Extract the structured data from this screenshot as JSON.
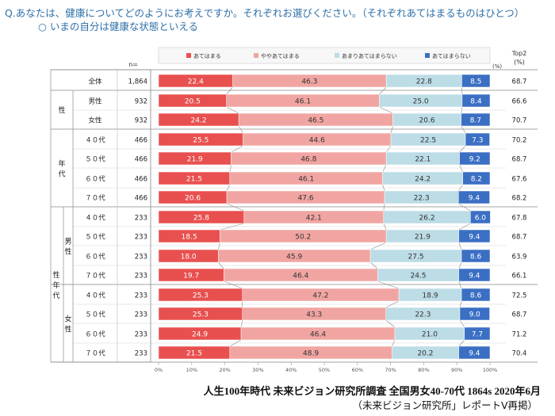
{
  "question": "Q.あなたは、健康についてどのようにお考えですか。それぞれお選びください。（それぞれあてはまるものはひとつ）",
  "subquestion": "○ いまの自分は健康な状態といえる",
  "n_label": "n=",
  "pct_label": "(%)",
  "top2_label_1": "Top2",
  "top2_label_2": "(%)",
  "group_labels": {
    "sex": "性",
    "age": "年\n代",
    "sexage": "性\n年\n代",
    "male": "男\n性",
    "female": "女\n性"
  },
  "source_line1": "人生100年時代 未来ビジョン研究所調査 全国男女40-70代 1864s 2020年6月",
  "source_line2": "（未来ビジョン研究所」レポートⅤ再掲）",
  "colors": {
    "s1": "#e8504f",
    "s2": "#f1a5a2",
    "s3": "#bcdce6",
    "s4": "#3b6fc4"
  },
  "chart_data": {
    "type": "bar",
    "stacked": true,
    "orientation": "horizontal",
    "x_ticks": [
      "0%",
      "10%",
      "20%",
      "30%",
      "40%",
      "50%",
      "60%",
      "70%",
      "80%",
      "90%",
      "100%"
    ],
    "xlim": [
      0,
      100
    ],
    "legend_position": "top",
    "series": [
      {
        "name": "あてはまる",
        "color": "#e8504f"
      },
      {
        "name": "ややあてはまる",
        "color": "#f1a5a2"
      },
      {
        "name": "あまりあてはまらない",
        "color": "#bcdce6"
      },
      {
        "name": "あてはまらない",
        "color": "#3b6fc4"
      }
    ],
    "rows": [
      {
        "label": "全体",
        "n": "1,864",
        "values": [
          22.4,
          46.3,
          22.8,
          8.5
        ],
        "top2": "68.7"
      },
      {
        "label": "男性",
        "n": "932",
        "values": [
          20.5,
          46.1,
          25.0,
          8.4
        ],
        "top2": "66.6"
      },
      {
        "label": "女性",
        "n": "932",
        "values": [
          24.2,
          46.5,
          20.6,
          8.7
        ],
        "top2": "70.7"
      },
      {
        "label": "４０代",
        "n": "466",
        "values": [
          25.5,
          44.6,
          22.5,
          7.3
        ],
        "top2": "70.2"
      },
      {
        "label": "５０代",
        "n": "466",
        "values": [
          21.9,
          46.8,
          22.1,
          9.2
        ],
        "top2": "68.7"
      },
      {
        "label": "６０代",
        "n": "466",
        "values": [
          21.5,
          46.1,
          24.2,
          8.2
        ],
        "top2": "67.6"
      },
      {
        "label": "７０代",
        "n": "466",
        "values": [
          20.6,
          47.6,
          22.3,
          9.4
        ],
        "top2": "68.2"
      },
      {
        "label": "４０代",
        "n": "233",
        "values": [
          25.8,
          42.1,
          26.2,
          6.0
        ],
        "top2": "67.8"
      },
      {
        "label": "５０代",
        "n": "233",
        "values": [
          18.5,
          50.2,
          21.9,
          9.4
        ],
        "top2": "68.7"
      },
      {
        "label": "６０代",
        "n": "233",
        "values": [
          18.0,
          45.9,
          27.5,
          8.6
        ],
        "top2": "63.9"
      },
      {
        "label": "７０代",
        "n": "233",
        "values": [
          19.7,
          46.4,
          24.5,
          9.4
        ],
        "top2": "66.1"
      },
      {
        "label": "４０代",
        "n": "233",
        "values": [
          25.3,
          47.2,
          18.9,
          8.6
        ],
        "top2": "72.5"
      },
      {
        "label": "５０代",
        "n": "233",
        "values": [
          25.3,
          43.3,
          22.3,
          9.0
        ],
        "top2": "68.7"
      },
      {
        "label": "６０代",
        "n": "233",
        "values": [
          24.9,
          46.4,
          21.0,
          7.7
        ],
        "top2": "71.2"
      },
      {
        "label": "７０代",
        "n": "233",
        "values": [
          21.5,
          48.9,
          20.2,
          9.4
        ],
        "top2": "70.4"
      }
    ]
  }
}
